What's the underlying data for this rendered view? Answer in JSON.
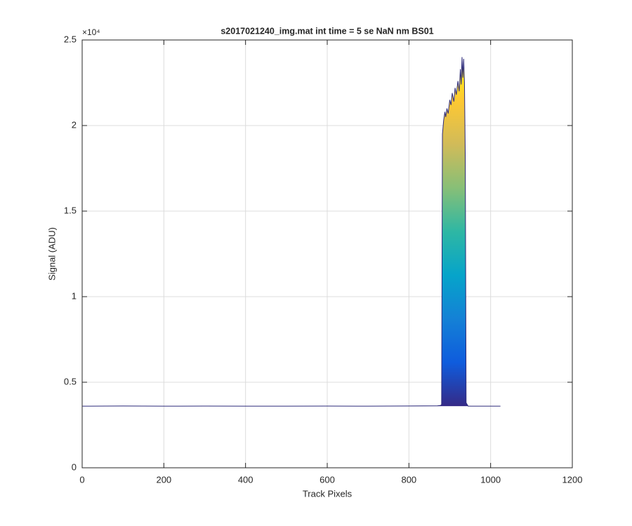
{
  "chart_data": {
    "type": "line",
    "title": "s2017021240_img.mat int time = 5 se  NaN nm BS01",
    "x_label": "Track Pixels",
    "y_label": "Signal (ADU)",
    "y_exponent_label": "×10⁴",
    "x": [
      1,
      100,
      200,
      300,
      400,
      500,
      600,
      700,
      800,
      870,
      878,
      880,
      882,
      885,
      888,
      890,
      893,
      896,
      900,
      903,
      906,
      910,
      913,
      916,
      920,
      923,
      926,
      928,
      930,
      932,
      934,
      936,
      938,
      940,
      945,
      1000,
      1024
    ],
    "series": [
      {
        "color": "#2c2a7a",
        "values": [
          3600,
          3610,
          3600,
          3605,
          3600,
          3600,
          3605,
          3600,
          3610,
          3620,
          3650,
          3700,
          19500,
          20300,
          20800,
          20500,
          21000,
          20700,
          21500,
          21200,
          21900,
          21400,
          22200,
          21800,
          22600,
          22000,
          23300,
          22400,
          24000,
          22800,
          23900,
          22500,
          18000,
          3800,
          3600,
          3600,
          3600
        ]
      }
    ],
    "colormap": [
      "#352a87",
      "#0f5cdd",
      "#1481d6",
      "#06a4ca",
      "#2eb7a4",
      "#87bf77",
      "#d1bb59",
      "#fec832",
      "#f9fb0e"
    ],
    "xlim": [
      0,
      1200
    ],
    "xticks": [
      0,
      200,
      400,
      600,
      800,
      1000,
      1200
    ],
    "ylim": [
      0,
      25000
    ],
    "yticks": [
      0,
      {
        "value": 5000,
        "label": "0.5"
      },
      {
        "value": 10000,
        "label": "1"
      },
      {
        "value": 15000,
        "label": "1.5"
      },
      {
        "value": 20000,
        "label": "2"
      },
      {
        "value": 25000,
        "label": "2.5"
      }
    ],
    "grid": true
  }
}
